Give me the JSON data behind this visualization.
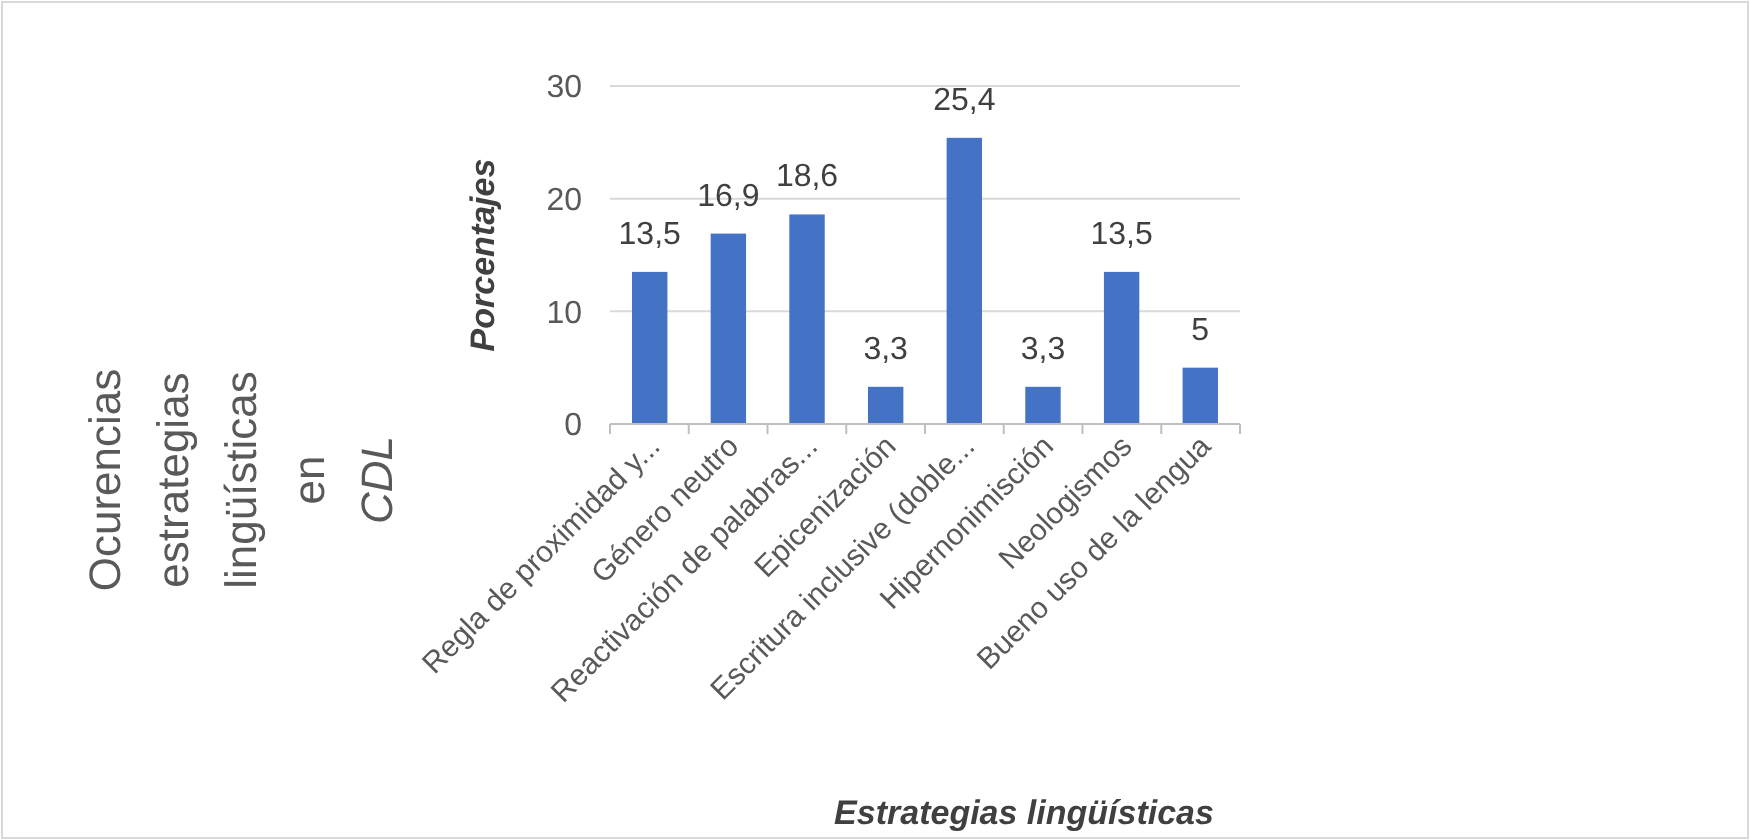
{
  "chart_data": {
    "type": "bar",
    "title": "Ocurencias estrategias lingüísticas en CDL",
    "xlabel": "Estrategias lingüísticas",
    "ylabel": "Porcentajes",
    "categories": [
      "Regla de proximidad y...",
      "Género neutro",
      "Reactivación de palabras...",
      "Epicenización",
      "Escritura inclusive (doble...",
      "Hipernonimisción",
      "Neologismos",
      "Bueno uso de la lengua"
    ],
    "values": [
      13.5,
      16.9,
      18.6,
      3.3,
      25.4,
      3.3,
      13.5,
      5
    ],
    "value_labels": [
      "13,5",
      "16,9",
      "18,6",
      "3,3",
      "25,4",
      "3,3",
      "13,5",
      "5"
    ],
    "color": "#4472c4",
    "ylim": [
      0,
      30
    ],
    "yticks": [
      0,
      10,
      20,
      30
    ],
    "grid": "y"
  }
}
